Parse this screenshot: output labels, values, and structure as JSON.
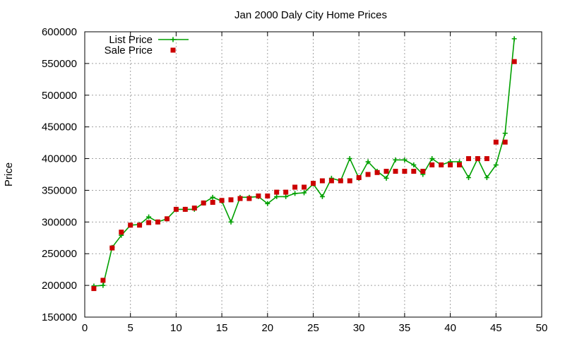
{
  "chart_data": {
    "type": "line",
    "title": "Jan 2000 Daly City Home Prices",
    "xlabel": "",
    "ylabel": "Price",
    "xlim": [
      0,
      50
    ],
    "ylim": [
      150000,
      600000
    ],
    "xticks": [
      0,
      5,
      10,
      15,
      20,
      25,
      30,
      35,
      40,
      45,
      50
    ],
    "yticks": [
      150000,
      200000,
      250000,
      300000,
      350000,
      400000,
      450000,
      500000,
      550000,
      600000
    ],
    "grid": true,
    "legend_position": "top-left",
    "series": [
      {
        "name": "List Price",
        "style": "line-with-plus",
        "color": "#00a000",
        "x": [
          1,
          2,
          3,
          4,
          5,
          6,
          7,
          8,
          9,
          10,
          11,
          12,
          13,
          14,
          15,
          16,
          17,
          18,
          19,
          20,
          21,
          22,
          23,
          24,
          25,
          26,
          27,
          28,
          29,
          30,
          31,
          32,
          33,
          34,
          35,
          36,
          37,
          38,
          39,
          40,
          41,
          42,
          43,
          44,
          45,
          46,
          47
        ],
        "y": [
          199000,
          200000,
          260000,
          279000,
          295000,
          296000,
          308000,
          300000,
          305000,
          320000,
          320000,
          320000,
          330000,
          339000,
          333000,
          300000,
          339000,
          339000,
          340000,
          329000,
          340000,
          340000,
          345000,
          346000,
          360000,
          340000,
          369000,
          365000,
          400000,
          369000,
          395000,
          380000,
          369000,
          398000,
          398000,
          390000,
          375000,
          400000,
          390000,
          395000,
          395000,
          370000,
          400000,
          370000,
          390000,
          440000,
          589000
        ]
      },
      {
        "name": "Sale Price",
        "style": "square-points",
        "color": "#cc0000",
        "x": [
          1,
          2,
          3,
          4,
          5,
          6,
          7,
          8,
          9,
          10,
          11,
          12,
          13,
          14,
          15,
          16,
          17,
          18,
          19,
          20,
          21,
          22,
          23,
          24,
          25,
          26,
          27,
          28,
          29,
          30,
          31,
          32,
          33,
          34,
          35,
          36,
          37,
          38,
          39,
          40,
          41,
          42,
          43,
          44,
          45,
          46,
          47
        ],
        "y": [
          195000,
          208000,
          259000,
          284000,
          295000,
          295000,
          299000,
          300000,
          305000,
          320000,
          320000,
          322000,
          330000,
          331000,
          334000,
          335000,
          337000,
          337000,
          341000,
          341000,
          347000,
          347000,
          355000,
          355000,
          361000,
          365000,
          365000,
          365000,
          365000,
          370000,
          375000,
          378000,
          380000,
          380000,
          380000,
          380000,
          380000,
          390000,
          390000,
          390000,
          390000,
          400000,
          400000,
          400000,
          426000,
          426000,
          553000
        ]
      }
    ]
  }
}
